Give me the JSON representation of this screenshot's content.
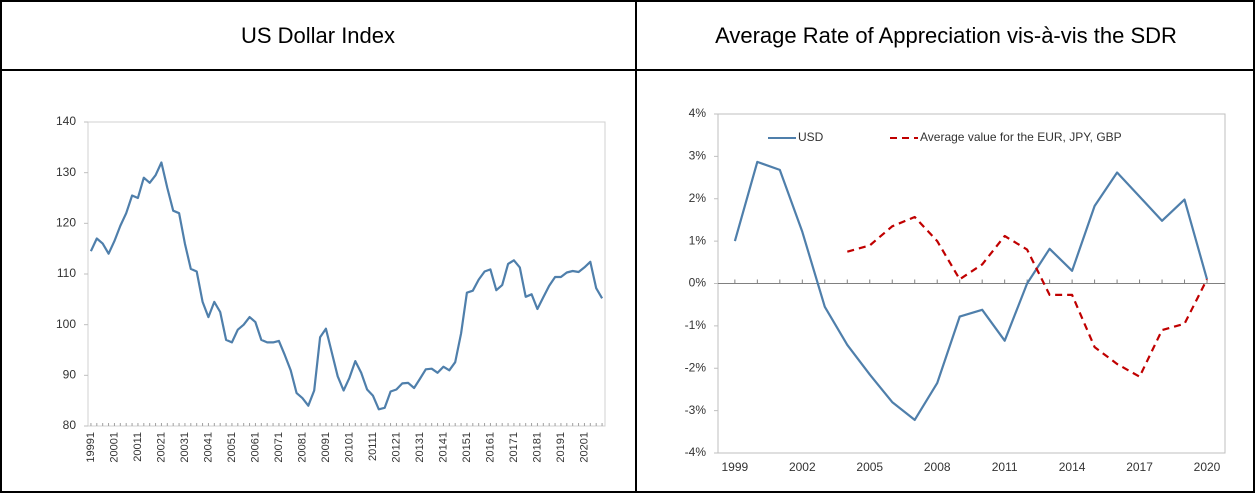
{
  "chart_data": [
    {
      "type": "line",
      "title": "US Dollar Index",
      "categories": [
        "19991",
        null,
        null,
        null,
        "20001",
        null,
        null,
        null,
        "20011",
        null,
        null,
        null,
        "20021",
        null,
        null,
        null,
        "20031",
        null,
        null,
        null,
        "20041",
        null,
        null,
        null,
        "20051",
        null,
        null,
        null,
        "20061",
        null,
        null,
        null,
        "20071",
        null,
        null,
        null,
        "20081",
        null,
        null,
        null,
        "20091",
        null,
        null,
        null,
        "20101",
        null,
        null,
        null,
        "20111",
        null,
        null,
        null,
        "20121",
        null,
        null,
        null,
        "20131",
        null,
        null,
        null,
        "20141",
        null,
        null,
        null,
        "20151",
        null,
        null,
        null,
        "20161",
        null,
        null,
        null,
        "20171",
        null,
        null,
        null,
        "20181",
        null,
        null,
        null,
        "20191",
        null,
        null,
        null,
        "20201",
        null,
        null,
        null
      ],
      "series": [
        {
          "name": null,
          "color": "#4f7fab",
          "values": [
            114.5,
            117,
            116,
            114,
            116.5,
            119.5,
            122,
            125.5,
            125,
            129,
            128,
            129.5,
            132,
            127,
            122.5,
            122,
            116,
            111,
            110.5,
            104.5,
            101.5,
            104.5,
            102.5,
            97,
            96.5,
            99,
            100,
            101.5,
            100.5,
            97,
            96.5,
            96.5,
            96.8,
            94,
            91,
            86.5,
            85.5,
            84,
            87,
            97.5,
            99.2,
            94.5,
            89.8,
            87,
            89.5,
            92.8,
            90.5,
            87.2,
            86,
            83.3,
            83.6,
            86.8,
            87.2,
            88.4,
            88.5,
            87.5,
            89.3,
            91.2,
            91.3,
            90.5,
            91.7,
            91,
            92.6,
            98.3,
            106.3,
            106.7,
            108.9,
            110.5,
            110.9,
            106.8,
            107.8,
            112,
            112.7,
            111.3,
            105.5,
            106,
            103.1,
            105.4,
            107.7,
            109.4,
            109.4,
            110.3,
            110.6,
            110.4,
            111.3,
            112.4,
            107.2,
            105.2
          ]
        }
      ],
      "ylim": [
        80,
        140
      ],
      "yticks": [
        80,
        90,
        100,
        110,
        120,
        130,
        140
      ],
      "grid": false
    },
    {
      "type": "line",
      "title": "Average Rate of Appreciation vis-à-vis the SDR",
      "x": [
        1999,
        2000,
        2001,
        2002,
        2003,
        2004,
        2005,
        2006,
        2007,
        2008,
        2009,
        2010,
        2011,
        2012,
        2013,
        2014,
        2015,
        2016,
        2017,
        2018,
        2019,
        2020
      ],
      "series": [
        {
          "name": "USD",
          "color": "#4f7fab",
          "style": "solid",
          "values": [
            1.0,
            2.87,
            2.68,
            1.22,
            -0.55,
            -1.45,
            -2.15,
            -2.8,
            -3.22,
            -2.35,
            -0.78,
            -0.62,
            -1.35,
            0.0,
            0.82,
            0.3,
            1.83,
            2.62,
            2.05,
            1.48,
            1.98,
            0.1
          ]
        },
        {
          "name": "Average value for the EUR, JPY, GBP",
          "color": "#c00000",
          "style": "dashed",
          "values": [
            null,
            null,
            null,
            null,
            null,
            0.75,
            0.9,
            1.35,
            1.57,
            1.0,
            0.1,
            0.45,
            1.12,
            0.8,
            -0.27,
            -0.27,
            -1.5,
            -1.9,
            -2.2,
            -1.1,
            -0.95,
            0.1
          ]
        }
      ],
      "xlim": [
        1998.25,
        2020.8
      ],
      "xticks": [
        1999,
        2002,
        2005,
        2008,
        2011,
        2014,
        2017,
        2020
      ],
      "ylim": [
        -4,
        4
      ],
      "yticks": [
        {
          "value": -4,
          "label": "-4%"
        },
        {
          "value": -3,
          "label": "-3%"
        },
        {
          "value": -2,
          "label": "-2%"
        },
        {
          "value": -1,
          "label": "-1%"
        },
        {
          "value": 0,
          "label": "0%"
        },
        {
          "value": 1,
          "label": "1%"
        },
        {
          "value": 2,
          "label": "2%"
        },
        {
          "value": 3,
          "label": "3%"
        },
        {
          "value": 4,
          "label": "4%"
        }
      ],
      "grid": false,
      "legend": "top"
    }
  ]
}
